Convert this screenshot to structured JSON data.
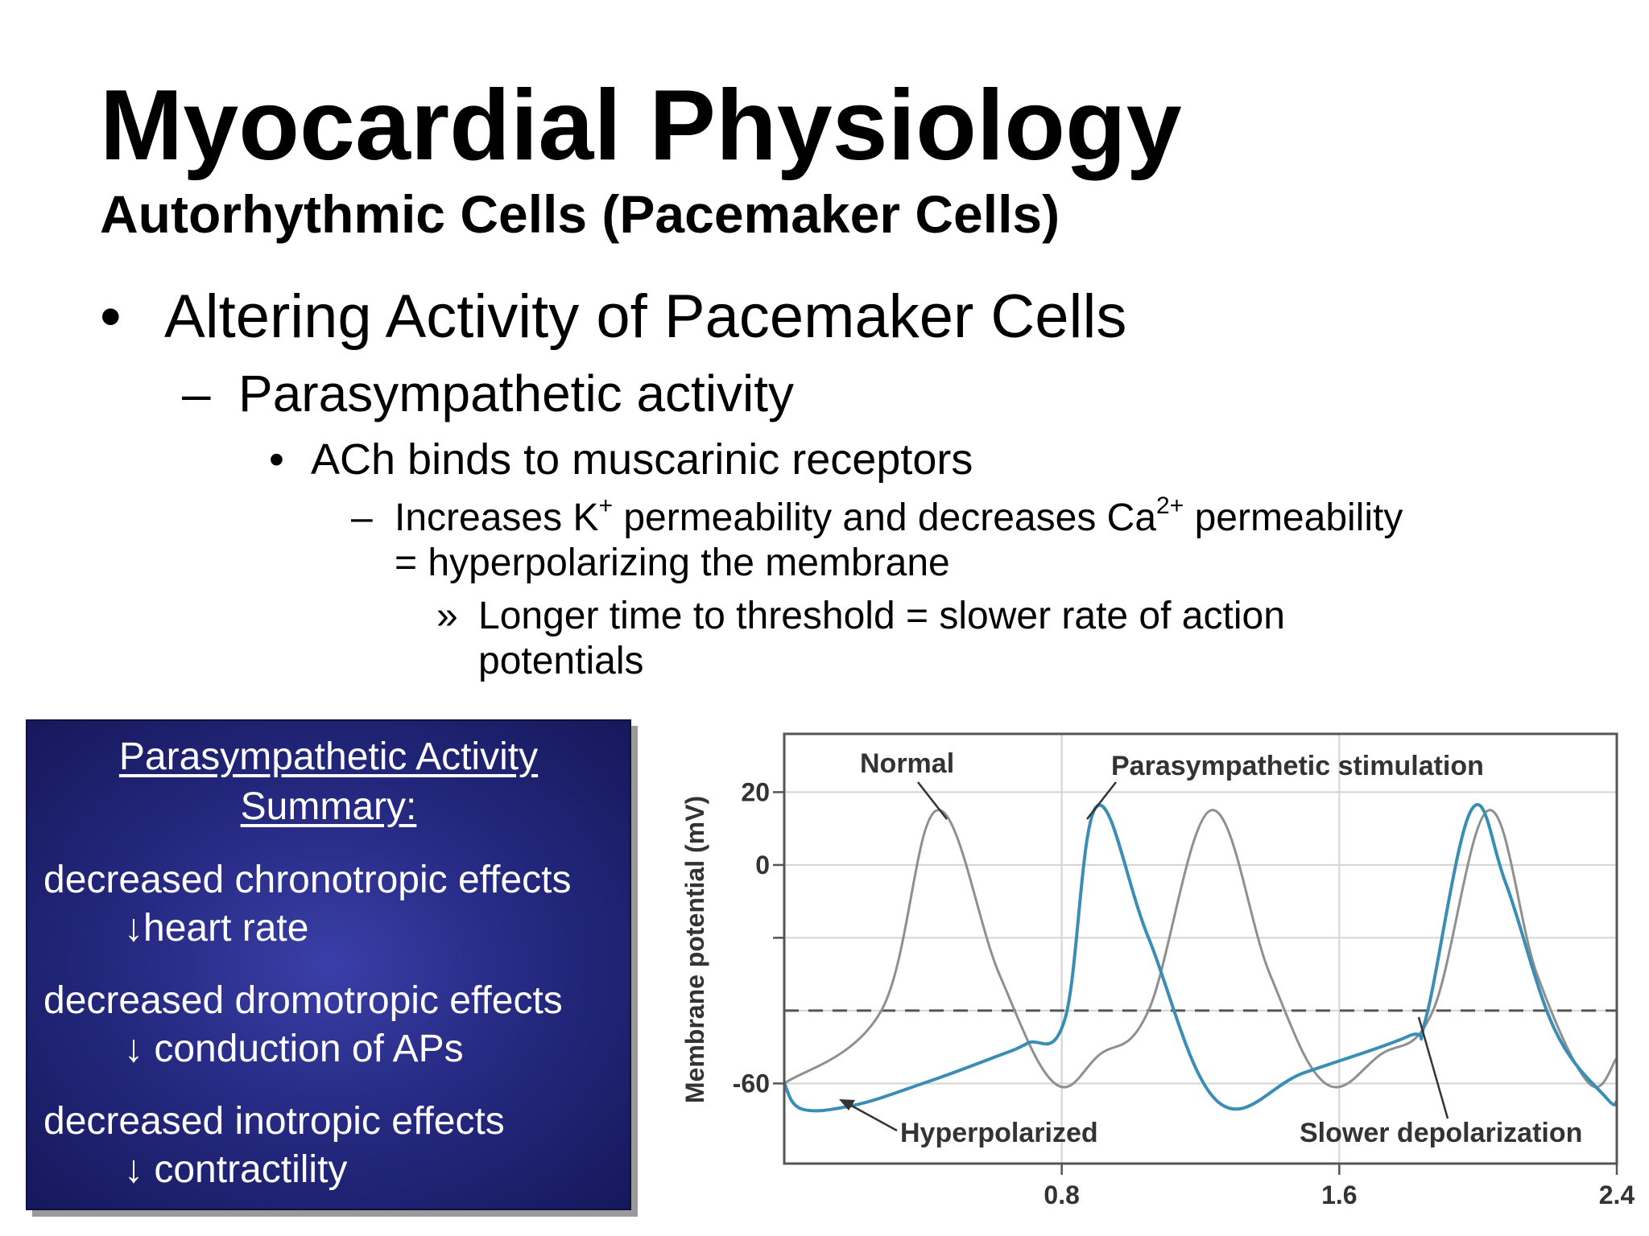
{
  "slide": {
    "title": "Myocardial Physiology",
    "subtitle": "Autorhythmic Cells (Pacemaker Cells)",
    "bullet1": "Altering Activity of Pacemaker Cells",
    "bullet1_marker": "•",
    "bullet2": "Parasympathetic activity",
    "bullet2_marker": "–",
    "bullet3": "ACh binds to muscarinic receptors",
    "bullet3_marker": "•",
    "bullet4_marker": "–",
    "bullet4_a": "Increases K",
    "bullet4_sup1": "+",
    "bullet4_b": " permeability and decreases Ca",
    "bullet4_sup2": "2+",
    "bullet4_c": " permeability",
    "bullet4_line2": "= hyperpolarizing the membrane",
    "bullet5_marker": "»",
    "bullet5_line1": "Longer time to threshold = slower rate of action",
    "bullet5_line2": "potentials"
  },
  "summary": {
    "heading_line1": "Parasympathetic Activity",
    "heading_line2": "Summary:",
    "items": [
      {
        "effect": "decreased chronotropic effects",
        "result": "↓heart rate"
      },
      {
        "effect": "decreased dromotropic effects",
        "result": "↓ conduction of APs"
      },
      {
        "effect": "decreased inotropic effects",
        "result": "↓ contractility"
      }
    ]
  },
  "chart_data": {
    "type": "line",
    "title": "",
    "xlabel": "",
    "ylabel": "Membrane potential (mV)",
    "x_ticks": [
      "0.8",
      "1.6",
      "2.4"
    ],
    "y_ticks": [
      "20",
      "0",
      "-60"
    ],
    "xlim": [
      0,
      2.4
    ],
    "ylim": [
      -82,
      36
    ],
    "threshold_mV": -40,
    "grid": true,
    "series": [
      {
        "label": "Normal",
        "color": "#8f8f8f",
        "x": [
          0,
          0.28,
          0.44,
          0.62,
          0.78,
          0.91,
          1.05,
          1.23,
          1.4,
          1.56,
          1.72,
          1.87,
          2.03,
          2.17,
          2.32,
          2.4
        ],
        "y": [
          -60,
          -40,
          15,
          -30,
          -60,
          -52,
          -40,
          15,
          -30,
          -60,
          -52,
          -40,
          15,
          -30,
          -60,
          -53
        ]
      },
      {
        "label": "Parasympathetic stimulation",
        "color": "#3a8eb5",
        "x": [
          0,
          0.05,
          0.2,
          0.4,
          0.6,
          0.7,
          0.81,
          0.9,
          1.05,
          1.25,
          1.5,
          1.8,
          1.85,
          1.98,
          2.08,
          2.22,
          2.37,
          2.4
        ],
        "y": [
          -60,
          -67,
          -66,
          -60,
          -53,
          -49,
          -42,
          16,
          -20,
          -65,
          -57,
          -47,
          -42,
          15,
          -5,
          -45,
          -64,
          -65
        ]
      }
    ],
    "annotations": [
      "Normal",
      "Parasympathetic stimulation",
      "Hyperpolarized",
      "Slower depolarization"
    ]
  }
}
